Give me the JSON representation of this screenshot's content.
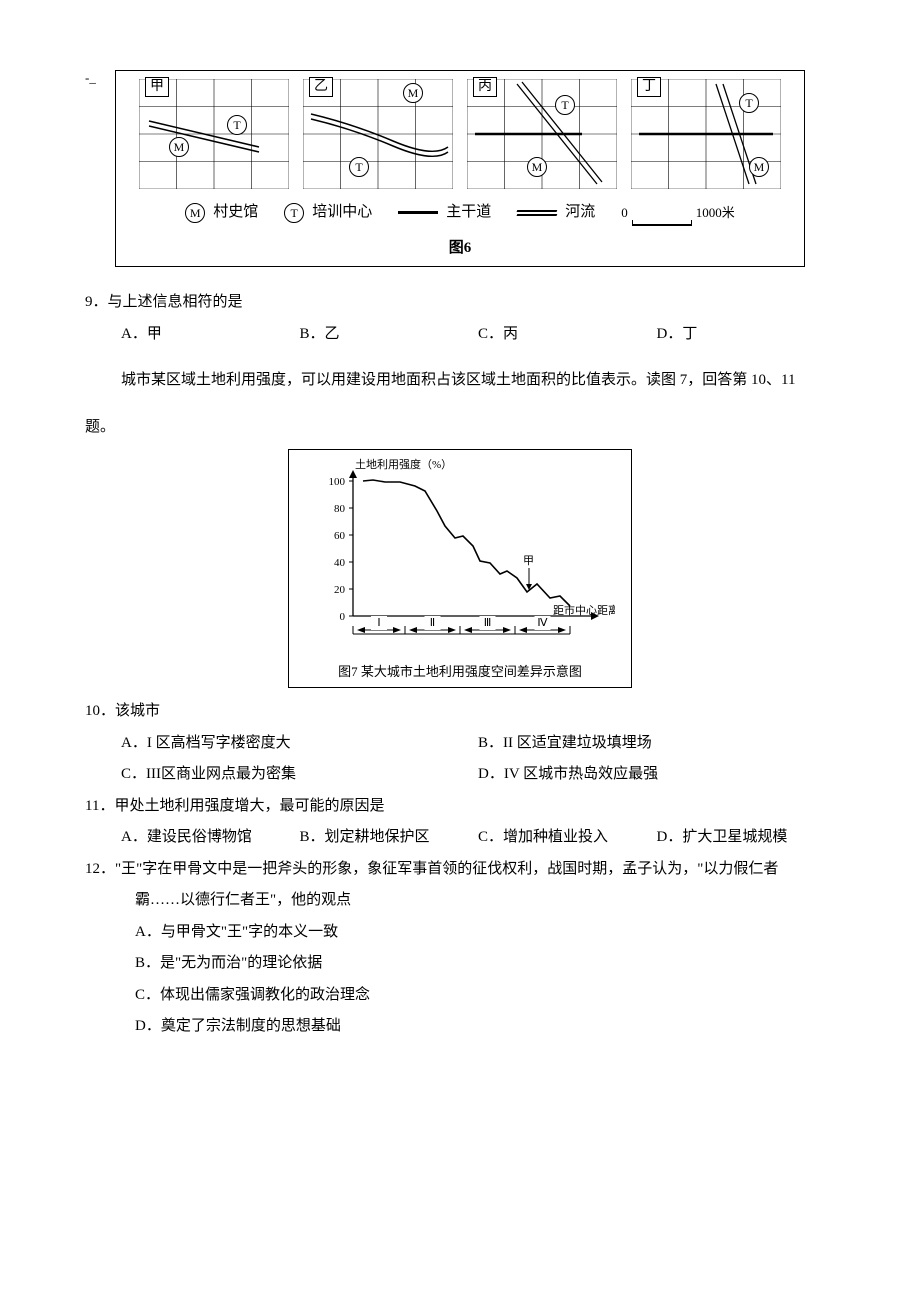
{
  "dash": "-_",
  "figure6": {
    "panels": [
      {
        "label": "甲"
      },
      {
        "label": "乙"
      },
      {
        "label": "丙"
      },
      {
        "label": "丁"
      }
    ],
    "legend": {
      "m_symbol": "M",
      "m_label": "村史馆",
      "t_symbol": "T",
      "t_label": "培训中心",
      "road_label": "主干道",
      "river_label": "河流",
      "scale_zero": "0",
      "scale_val": "1000米"
    },
    "caption": "图6"
  },
  "q9": {
    "text": "9．与上述信息相符的是",
    "opts": {
      "a": "A．甲",
      "b": "B．乙",
      "c": "C．丙",
      "d": "D．丁"
    }
  },
  "instr10": "城市某区域土地利用强度，可以用建设用地面积占该区域土地面积的比值表示。读图 7，回答第 10、11",
  "instr10b": "题。",
  "figure7": {
    "ylabel": "土地利用强度（%）",
    "yticks": [
      "100",
      "80",
      "60",
      "40",
      "20",
      "0"
    ],
    "xlabel": "距市中心距离",
    "zones": [
      "Ⅰ",
      "Ⅱ",
      "Ⅲ",
      "Ⅳ"
    ],
    "marker": "甲",
    "caption": "图7  某大城市土地利用强度空间差异示意图",
    "curve": [
      [
        18,
        25
      ],
      [
        28,
        24
      ],
      [
        40,
        26
      ],
      [
        55,
        26
      ],
      [
        70,
        30
      ],
      [
        80,
        35
      ],
      [
        92,
        55
      ],
      [
        100,
        70
      ],
      [
        110,
        82
      ],
      [
        118,
        80
      ],
      [
        128,
        90
      ],
      [
        135,
        105
      ],
      [
        145,
        107
      ],
      [
        155,
        118
      ],
      [
        162,
        115
      ],
      [
        172,
        122
      ],
      [
        182,
        136
      ],
      [
        192,
        128
      ],
      [
        205,
        142
      ],
      [
        215,
        140
      ],
      [
        225,
        150
      ]
    ]
  },
  "q10": {
    "text": "10．该城市",
    "opts": {
      "a": "A．I 区高档写字楼密度大",
      "b": "B．II 区适宜建垃圾填埋场",
      "c": "C．III区商业网点最为密集",
      "d": "D．IV 区城市热岛效应最强"
    }
  },
  "q11": {
    "text": "11．甲处土地利用强度增大，最可能的原因是",
    "opts": {
      "a": "A．建设民俗博物馆",
      "b": "B．划定耕地保护区",
      "c": "C．增加种植业投入",
      "d": "D．扩大卫星城规模"
    }
  },
  "q12": {
    "line1": "12．\"王\"字在甲骨文中是一把斧头的形象，象征军事首领的征伐权利，战国时期，孟子认为，\"以力假仁者",
    "line2": "霸……以德行仁者王\"，他的观点",
    "opts": {
      "a": "A．与甲骨文\"王\"字的本义一致",
      "b": "B．是\"无为而治\"的理论依据",
      "c": "C．体现出儒家强调教化的政治理念",
      "d": "D．奠定了宗法制度的思想基础"
    }
  }
}
